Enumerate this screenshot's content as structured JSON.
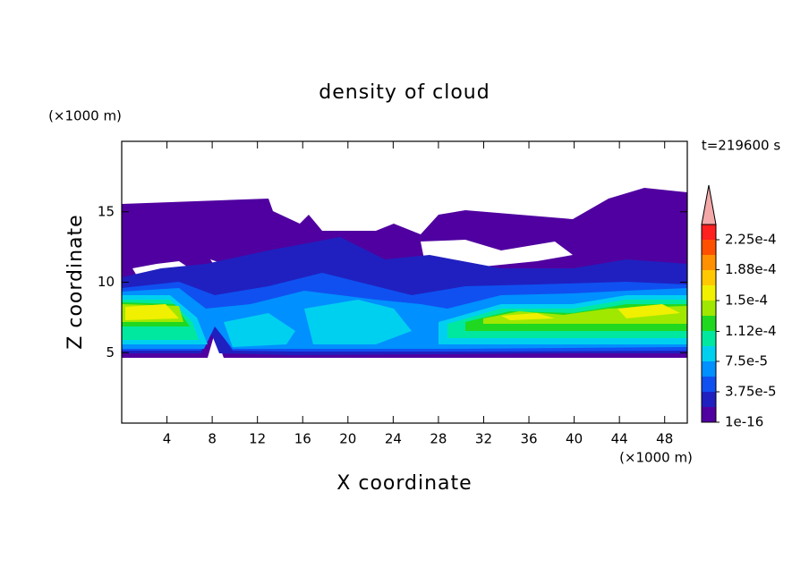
{
  "chart_data": {
    "type": "contour",
    "title": "density of cloud",
    "x_label": "X coordinate",
    "y_label": "Z coordinate",
    "x_unit": "(×1000 m)",
    "y_unit": "(×1000 m)",
    "time_label": "t=219600 s",
    "xlim": [
      0,
      50
    ],
    "ylim": [
      0,
      20
    ],
    "xticks": [
      4,
      8,
      12,
      16,
      20,
      24,
      28,
      32,
      36,
      40,
      44,
      48
    ],
    "yticks": [
      5,
      10,
      15
    ],
    "colorbar": {
      "clim": [
        1e-16,
        0.00024375
      ],
      "ticks": [
        1e-16,
        {
          "value": 3.75e-05,
          "label": "3.75e-5"
        },
        {
          "value": 7.5e-05,
          "label": "7.5e-5"
        },
        {
          "value": 0.000112,
          "label": "1.12e-4"
        },
        {
          "value": 0.00015,
          "label": "1.5e-4"
        },
        {
          "value": 0.000188,
          "label": "1.88e-4"
        },
        {
          "value": 0.000225,
          "label": "2.25e-4"
        }
      ],
      "colors": [
        "#5000a0",
        "#2020c0",
        "#1050f0",
        "#0090ff",
        "#00d0f0",
        "#00e8a0",
        "#20d820",
        "#a0e800",
        "#f0f000",
        "#ffc800",
        "#ff9000",
        "#ff5000",
        "#ff2020"
      ],
      "extend_color": "#f4a8a8"
    }
  }
}
